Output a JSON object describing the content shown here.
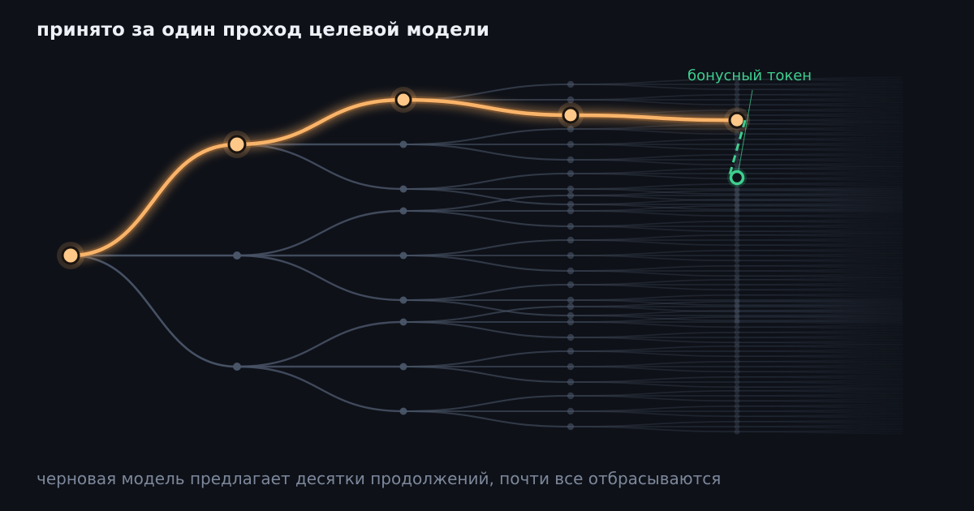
{
  "title": "принято за один проход целевой модели",
  "caption": "черновая модель предлагает десятки продолжений, почти все отбрасываются",
  "bonus_label": "бонусный токен",
  "colors": {
    "background": "#0e1118",
    "edge": "#4a5568",
    "accepted": "#f9b46a",
    "accepted_node": "#ffc888",
    "bonus": "#3ecf8e",
    "title": "#eef1f6",
    "caption": "#7d889b"
  },
  "tree": {
    "branching": 3,
    "visible_levels": 5,
    "accepted_path": [
      0,
      0,
      2,
      2
    ],
    "bonus_token": true
  }
}
